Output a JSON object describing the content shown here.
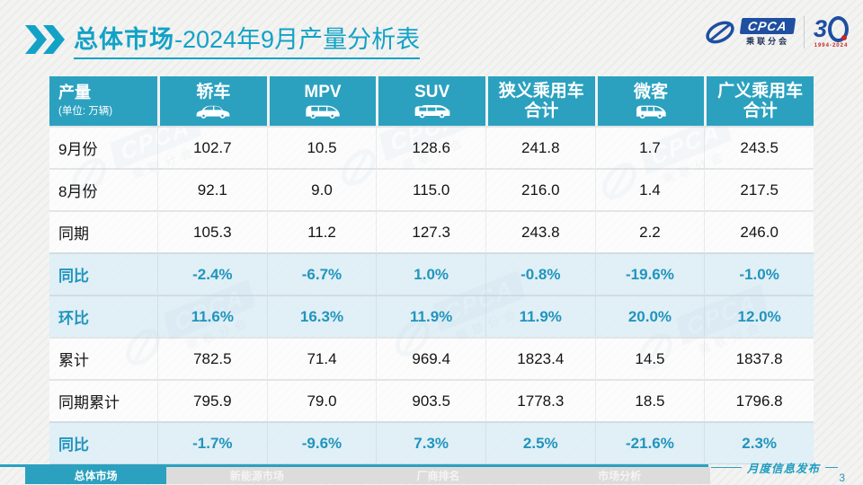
{
  "slide": {
    "title_prefix": "总体市场",
    "title_suffix": "-2024年9月产量分析表"
  },
  "logos": {
    "cpca_text": "CPCA",
    "cpca_sub": "乘联分会",
    "anniversary": "3",
    "anniversary_sub": "1994-2024"
  },
  "table": {
    "header": {
      "label": "产量",
      "unit": "(单位: 万辆)",
      "columns": [
        {
          "key": "sedan",
          "line1": "轿车",
          "line2": null,
          "icon": "sedan-icon"
        },
        {
          "key": "mpv",
          "line1": "MPV",
          "line2": null,
          "icon": "mpv-icon"
        },
        {
          "key": "suv",
          "line1": "SUV",
          "line2": null,
          "icon": "suv-icon"
        },
        {
          "key": "narrow-pv-total",
          "line1": "狭义乘用车",
          "line2": "合计",
          "icon": null
        },
        {
          "key": "microvan",
          "line1": "微客",
          "line2": null,
          "icon": "microvan-icon"
        },
        {
          "key": "broad-pv-total",
          "line1": "广义乘用车",
          "line2": "合计",
          "icon": null
        }
      ]
    }
  },
  "chart_data": {
    "type": "table",
    "title": "总体市场-2024年9月产量分析表",
    "unit": "万辆",
    "columns": [
      "轿车",
      "MPV",
      "SUV",
      "狭义乘用车合计",
      "微客",
      "广义乘用车合计"
    ],
    "rows": [
      {
        "label": "9月份",
        "values": [
          "102.7",
          "10.5",
          "128.6",
          "241.8",
          "1.7",
          "243.5"
        ],
        "highlight": false
      },
      {
        "label": "8月份",
        "values": [
          "92.1",
          "9.0",
          "115.0",
          "216.0",
          "1.4",
          "217.5"
        ],
        "highlight": false
      },
      {
        "label": "同期",
        "values": [
          "105.3",
          "11.2",
          "127.3",
          "243.8",
          "2.2",
          "246.0"
        ],
        "highlight": false
      },
      {
        "label": "同比",
        "values": [
          "-2.4%",
          "-6.7%",
          "1.0%",
          "-0.8%",
          "-19.6%",
          "-1.0%"
        ],
        "highlight": true
      },
      {
        "label": "环比",
        "values": [
          "11.6%",
          "16.3%",
          "11.9%",
          "11.9%",
          "20.0%",
          "12.0%"
        ],
        "highlight": true
      },
      {
        "label": "累计",
        "values": [
          "782.5",
          "71.4",
          "969.4",
          "1823.4",
          "14.5",
          "1837.8"
        ],
        "highlight": false
      },
      {
        "label": "同期累计",
        "values": [
          "795.9",
          "79.0",
          "903.5",
          "1778.3",
          "18.5",
          "1796.8"
        ],
        "highlight": false
      },
      {
        "label": "同比",
        "values": [
          "-1.7%",
          "-9.6%",
          "7.3%",
          "2.5%",
          "-21.6%",
          "2.3%"
        ],
        "highlight": true
      }
    ]
  },
  "footer": {
    "tabs": [
      {
        "label": "总体市场",
        "active": true
      },
      {
        "label": "新能源市场",
        "active": false
      },
      {
        "label": "厂商排名",
        "active": false
      },
      {
        "label": "市场分析",
        "active": false
      }
    ],
    "note": "月度信息发布",
    "page_number": "3"
  },
  "colors": {
    "accent_teal": "#12a2c6",
    "header_bg": "#2ba1bf",
    "highlight_bg": "#ddeef7",
    "highlight_text": "#2095bd",
    "logo_blue": "#1e4fa0"
  }
}
